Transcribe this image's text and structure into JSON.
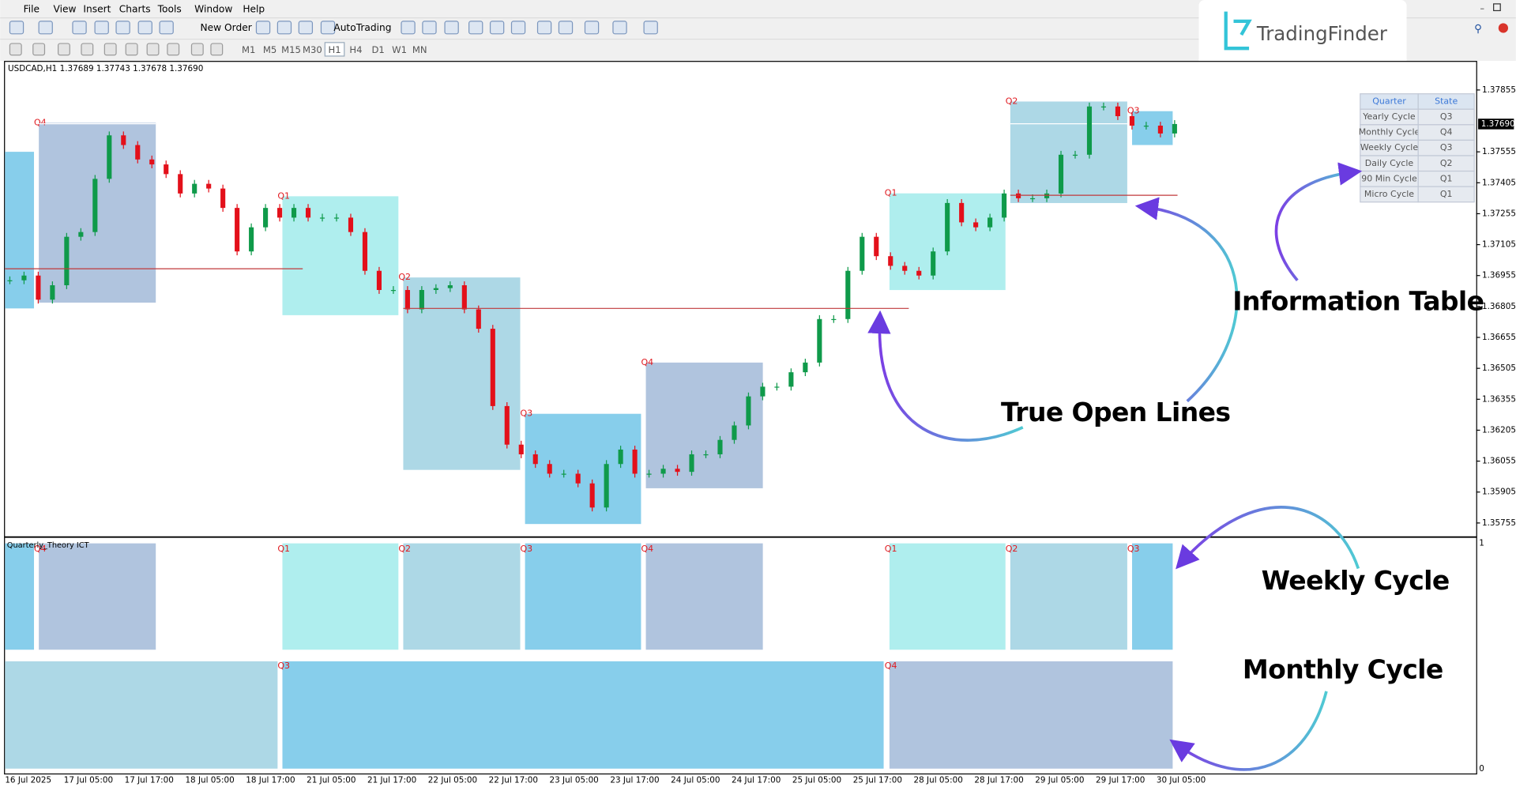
{
  "menu": [
    "File",
    "View",
    "Insert",
    "Charts",
    "Tools",
    "Window",
    "Help"
  ],
  "toolbar": {
    "new_order": "New Order",
    "auto_trading": "AutoTrading",
    "timeframes": [
      "M1",
      "M5",
      "M15",
      "M30",
      "H1",
      "H4",
      "D1",
      "W1",
      "MN"
    ]
  },
  "logo": "TradingFinder",
  "chart": {
    "header": "USDCAD,H1  1.37689 1.37743 1.37678 1.37690",
    "price_range": [
      1.35689,
      1.37996
    ],
    "price_ticks": [
      1.37855,
      1.37555,
      1.37405,
      1.37255,
      1.37105,
      1.36955,
      1.36805,
      1.36655,
      1.36505,
      1.36355,
      1.36205,
      1.36055,
      1.35905,
      1.35755
    ],
    "current_price": {
      "value": 1.3769,
      "label": "1.37690"
    },
    "time_labels": [
      "16 Jul 2025",
      "17 Jul 05:00",
      "17 Jul 17:00",
      "18 Jul 05:00",
      "18 Jul 17:00",
      "21 Jul 05:00",
      "21 Jul 17:00",
      "22 Jul 05:00",
      "22 Jul 17:00",
      "23 Jul 05:00",
      "23 Jul 17:00",
      "24 Jul 05:00",
      "24 Jul 17:00",
      "25 Jul 05:00",
      "25 Jul 17:00",
      "28 Jul 05:00",
      "28 Jul 17:00",
      "29 Jul 05:00",
      "29 Jul 17:00",
      "30 Jul 05:00"
    ],
    "closes": [
      1.36932,
      1.36955,
      1.36838,
      1.36908,
      1.37143,
      1.37166,
      1.37424,
      1.37635,
      1.37588,
      1.37518,
      1.37494,
      1.37447,
      1.37353,
      1.374,
      1.37377,
      1.37283,
      1.37072,
      1.37189,
      1.37283,
      1.37236,
      1.37283,
      1.37236,
      1.37236,
      1.37236,
      1.37166,
      1.36978,
      1.36885,
      1.36885,
      1.36791,
      1.36885,
      1.36894,
      1.36908,
      1.36791,
      1.36697,
      1.36322,
      1.36135,
      1.36088,
      1.36041,
      1.35994,
      1.35994,
      1.35947,
      1.3583,
      1.36041,
      1.36111,
      1.35994,
      1.35994,
      1.36018,
      1.36003,
      1.36088,
      1.36088,
      1.36158,
      1.36228,
      1.36369,
      1.36416,
      1.36416,
      1.36486,
      1.36533,
      1.36744,
      1.36744,
      1.36978,
      1.37143,
      1.37049,
      1.37002,
      1.36978,
      1.36955,
      1.37072,
      1.37307,
      1.37213,
      1.37189,
      1.37236,
      1.37353,
      1.3733,
      1.3733,
      1.37353,
      1.37541,
      1.37541,
      1.37775,
      1.37775,
      1.37728,
      1.37682,
      1.37682,
      1.37644,
      1.3769
    ],
    "quarter_labels": [
      "Q4",
      "Q1",
      "Q2",
      "Q3",
      "Q4",
      "Q1",
      "Q2",
      "Q3"
    ]
  },
  "indicator": {
    "name": "Quarterly_Theory ICT",
    "axis": [
      1,
      0
    ],
    "weekly_labels": [
      "Q4",
      "Q1",
      "Q2",
      "Q3",
      "Q4",
      "Q1",
      "Q2",
      "Q3"
    ],
    "monthly_labels": [
      "Q3",
      "Q4"
    ]
  },
  "info_table": {
    "header": [
      "Quarter",
      "State"
    ],
    "rows": [
      [
        "Yearly Cycle",
        "Q3"
      ],
      [
        "Monthly Cycle",
        "Q4"
      ],
      [
        "Weekly Cycle",
        "Q3"
      ],
      [
        "Daily Cycle",
        "Q2"
      ],
      [
        "90 Min Cycle",
        "Q1"
      ],
      [
        "Micro Cycle",
        "Q1"
      ]
    ]
  },
  "annotations": {
    "information_table": "Information Table",
    "true_open_lines": "True Open Lines",
    "weekly_cycle": "Weekly Cycle",
    "monthly_cycle": "Monthly Cycle"
  }
}
